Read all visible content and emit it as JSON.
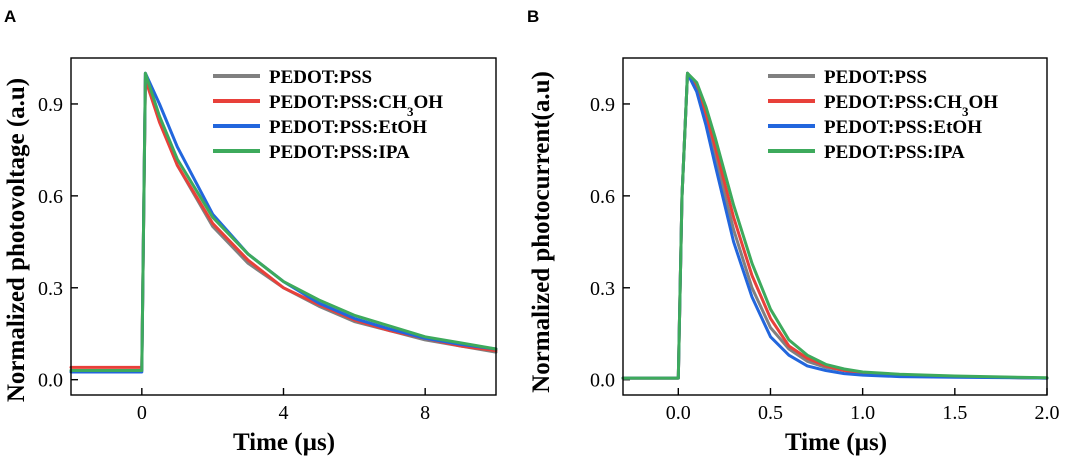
{
  "colors": {
    "PEDOT:PSS": "#808080",
    "PEDOT:PSS:CH3OH": "#e8403a",
    "PEDOT:PSS:EtOH": "#2266dd",
    "PEDOT:PSS:IPA": "#3daa5c"
  },
  "chart_data": [
    {
      "type": "line",
      "panel_label": "A",
      "title": "",
      "xlabel": "Time (µs)",
      "ylabel": "Normalized photovoltage (a.u)",
      "xlim": [
        -2,
        10
      ],
      "ylim": [
        -0.05,
        1.05
      ],
      "xticks": [
        0,
        4,
        8
      ],
      "xtick_labels": [
        "0",
        "4",
        "8"
      ],
      "yticks": [
        0.0,
        0.3,
        0.6,
        0.9
      ],
      "ytick_labels": [
        "0.0",
        "0.3",
        "0.6",
        "0.9"
      ],
      "grid": false,
      "legend_position": "top-right",
      "legend": [
        {
          "label": "PEDOT:PSS",
          "sub": ""
        },
        {
          "label": "PEDOT:PSS:CH",
          "sub": "3",
          "suffix": "OH"
        },
        {
          "label": "PEDOT:PSS:EtOH",
          "sub": ""
        },
        {
          "label": "PEDOT:PSS:IPA",
          "sub": ""
        }
      ],
      "x": [
        -2,
        0,
        0.1,
        0.5,
        1,
        2,
        3,
        4,
        5,
        6,
        7,
        8,
        9,
        10
      ],
      "series": [
        {
          "name": "PEDOT:PSS",
          "values": [
            0.03,
            0.03,
            1.0,
            0.85,
            0.7,
            0.5,
            0.38,
            0.3,
            0.24,
            0.19,
            0.16,
            0.13,
            0.11,
            0.09
          ]
        },
        {
          "name": "PEDOT:PSS:CH3OH",
          "values": [
            0.04,
            0.04,
            0.98,
            0.84,
            0.7,
            0.51,
            0.39,
            0.3,
            0.245,
            0.195,
            0.16,
            0.135,
            0.11,
            0.095
          ]
        },
        {
          "name": "PEDOT:PSS:EtOH",
          "values": [
            0.025,
            0.025,
            1.0,
            0.9,
            0.76,
            0.54,
            0.41,
            0.32,
            0.25,
            0.2,
            0.165,
            0.135,
            0.115,
            0.1
          ]
        },
        {
          "name": "PEDOT:PSS:IPA",
          "values": [
            0.03,
            0.03,
            1.0,
            0.86,
            0.72,
            0.53,
            0.41,
            0.32,
            0.26,
            0.21,
            0.175,
            0.14,
            0.12,
            0.1
          ]
        }
      ]
    },
    {
      "type": "line",
      "panel_label": "B",
      "title": "",
      "xlabel": "Time (µs)",
      "ylabel": "Normalized photocurrent(a.u)",
      "xlim": [
        -0.3,
        2.0
      ],
      "ylim": [
        -0.05,
        1.05
      ],
      "xticks": [
        0.0,
        0.5,
        1.0,
        1.5,
        2.0
      ],
      "xtick_labels": [
        "0.0",
        "0.5",
        "1.0",
        "1.5",
        "2.0"
      ],
      "yticks": [
        0.0,
        0.3,
        0.6,
        0.9
      ],
      "ytick_labels": [
        "0.0",
        "0.3",
        "0.6",
        "0.9"
      ],
      "grid": false,
      "legend_position": "top-right",
      "legend": [
        {
          "label": "PEDOT:PSS",
          "sub": ""
        },
        {
          "label": "PEDOT:PSS:CH",
          "sub": "3",
          "suffix": "OH"
        },
        {
          "label": "PEDOT:PSS:EtOH",
          "sub": ""
        },
        {
          "label": "PEDOT:PSS:IPA",
          "sub": ""
        }
      ],
      "x": [
        -0.3,
        0.0,
        0.02,
        0.05,
        0.1,
        0.15,
        0.2,
        0.3,
        0.4,
        0.5,
        0.6,
        0.7,
        0.8,
        0.9,
        1.0,
        1.2,
        1.5,
        2.0
      ],
      "series": [
        {
          "name": "PEDOT:PSS",
          "values": [
            0.005,
            0.005,
            0.6,
            1.0,
            0.95,
            0.85,
            0.73,
            0.49,
            0.3,
            0.17,
            0.1,
            0.06,
            0.04,
            0.03,
            0.02,
            0.015,
            0.01,
            0.005
          ]
        },
        {
          "name": "PEDOT:PSS:CH3OH",
          "values": [
            0.005,
            0.005,
            0.6,
            1.0,
            0.96,
            0.87,
            0.76,
            0.53,
            0.34,
            0.2,
            0.11,
            0.07,
            0.045,
            0.03,
            0.02,
            0.015,
            0.01,
            0.005
          ]
        },
        {
          "name": "PEDOT:PSS:EtOH",
          "values": [
            0.005,
            0.005,
            0.6,
            1.0,
            0.94,
            0.83,
            0.7,
            0.45,
            0.27,
            0.14,
            0.08,
            0.045,
            0.03,
            0.02,
            0.015,
            0.01,
            0.008,
            0.005
          ]
        },
        {
          "name": "PEDOT:PSS:IPA",
          "values": [
            0.005,
            0.005,
            0.6,
            1.0,
            0.97,
            0.89,
            0.79,
            0.57,
            0.38,
            0.23,
            0.13,
            0.08,
            0.05,
            0.035,
            0.025,
            0.018,
            0.012,
            0.006
          ]
        }
      ]
    }
  ]
}
